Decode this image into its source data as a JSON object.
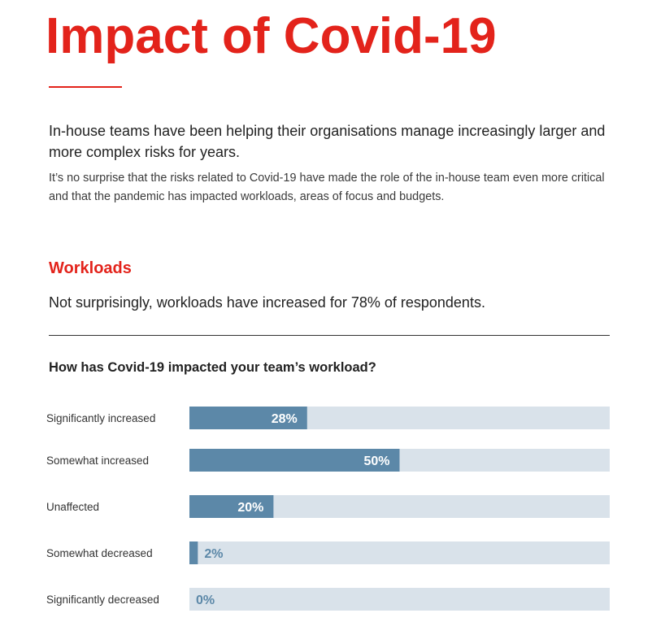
{
  "page": {
    "title": "Impact of Covid-19",
    "lead": "In-house teams have been helping their organisations manage increasingly larger and more complex risks for years.",
    "body": "It’s no surprise that the risks related to Covid-19 have made the role of the in-house team even more critical and that the pandemic has impacted workloads, areas of focus and budgets.",
    "section_heading": "Workloads",
    "section_lead": "Not surprisingly, workloads have increased for 78% of respondents."
  },
  "colors": {
    "accent_red": "#e3231b",
    "bar_fill": "#5c88a8",
    "bar_track": "#d9e2ea",
    "label_inside": "#ffffff",
    "label_outside": "#5c88a8"
  },
  "chart_data": {
    "type": "bar",
    "orientation": "horizontal",
    "title": "How has Covid-19 impacted your team’s workload?",
    "categories": [
      "Significantly increased",
      "Somewhat increased",
      "Unaffected",
      "Somewhat decreased",
      "Significantly decreased"
    ],
    "values": [
      28,
      50,
      20,
      2,
      0
    ],
    "value_labels": [
      "28%",
      "50%",
      "20%",
      "2%",
      "0%"
    ],
    "xlim": [
      0,
      100
    ],
    "unit": "%",
    "grid": false,
    "legend": "none"
  }
}
